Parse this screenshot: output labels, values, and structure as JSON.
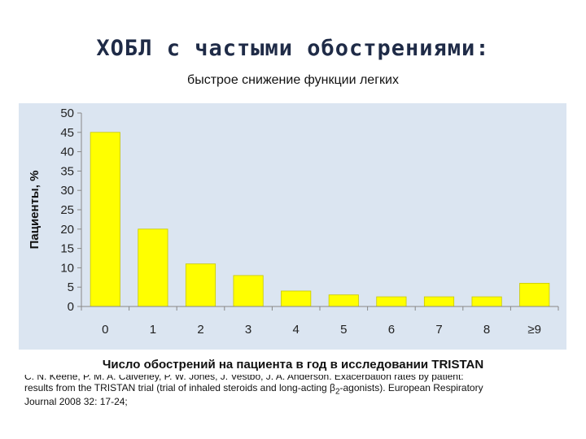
{
  "slide": {
    "title": "ХОБЛ с частыми обострениями:",
    "subtitle": "быстрое снижение функции легких"
  },
  "reference": {
    "line1": "C. N. Keene, P. M. A. Calverley, P. W. Jones, J. Vestbo, J. A. Anderson. Exacerbation rates by patient:",
    "line2a": "results from the TRISTAN trial (trial of inhaled steroids and long-acting β",
    "line2sub": "2",
    "line2b": "-agonists). European Respiratory",
    "line3": "Journal 2008 32: 17-24;"
  },
  "colors": {
    "bar": "#ffff00",
    "bar_edge": "#c8c800",
    "panel": "#dbe5f1",
    "grid": "#ffffff",
    "title": "#1f2b47"
  },
  "chart_data": {
    "type": "bar",
    "title": "",
    "xlabel": "Число обострений на пациента в год в исследовании TRISTAN",
    "ylabel": "Пациенты, %",
    "categories": [
      "0",
      "1",
      "2",
      "3",
      "4",
      "5",
      "6",
      "7",
      "8",
      "≥9"
    ],
    "values": [
      45,
      20,
      11,
      8,
      4,
      3,
      2.5,
      2.5,
      2.5,
      6
    ],
    "ylim": [
      0,
      50
    ],
    "yticks": [
      "0",
      "5",
      "10",
      "15",
      "20",
      "25",
      "30",
      "35",
      "40",
      "45",
      "50"
    ],
    "grid": false,
    "legend": "none"
  }
}
